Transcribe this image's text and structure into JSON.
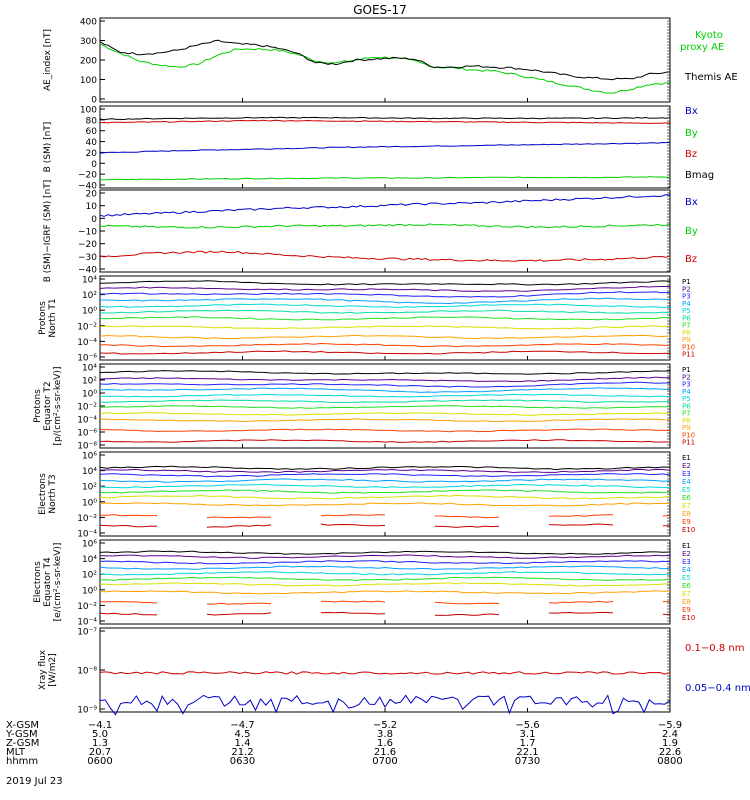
{
  "title": "GOES-17",
  "date": "2019 Jul 23",
  "colors": {
    "black": "#000000",
    "green": "#00d000",
    "blue": "#0000c8",
    "red": "#d00000",
    "p_colors": [
      "#000000",
      "#5a0090",
      "#2020ff",
      "#00a0ff",
      "#00d8d8",
      "#00e0a0",
      "#20e020",
      "#d8e000",
      "#ffa000",
      "#ff4000",
      "#c80000"
    ],
    "e_colors": [
      "#000000",
      "#5a0090",
      "#2020ff",
      "#00a0ff",
      "#00d8d8",
      "#20e020",
      "#d8e000",
      "#ffa000",
      "#ff4000",
      "#c80000"
    ]
  },
  "chart_data": [
    {
      "id": "ae",
      "type": "line",
      "ylabel": "AE_index [nT]",
      "yticks": [
        "400",
        "300",
        "200",
        "100",
        "0"
      ],
      "ylim": [
        0,
        420
      ],
      "series": [
        {
          "name": "Kyoto proxy AE",
          "color": "green",
          "values": [
            290,
            245,
            205,
            185,
            175,
            190,
            235,
            265,
            265,
            260,
            240,
            205,
            195,
            210,
            225,
            220,
            205,
            175,
            170,
            160,
            155,
            140,
            120,
            100,
            80,
            60,
            45,
            65,
            90,
            95
          ]
        },
        {
          "name": "Themis AE",
          "color": "black",
          "values": [
            300,
            250,
            240,
            245,
            260,
            285,
            305,
            290,
            285,
            270,
            245,
            195,
            190,
            210,
            215,
            220,
            215,
            175,
            175,
            180,
            175,
            170,
            160,
            145,
            130,
            120,
            115,
            115,
            140,
            150
          ]
        }
      ],
      "legend": [
        "Kyoto",
        "proxy AE",
        "Themis AE"
      ]
    },
    {
      "id": "bsm",
      "type": "line",
      "ylabel": "B (SM) [nT]",
      "yticks": [
        "100",
        "80",
        "60",
        "40",
        "20",
        "0",
        "−20",
        "−40"
      ],
      "ylim": [
        -45,
        102
      ],
      "series": [
        {
          "name": "Bx",
          "color": "blue",
          "values": [
            18,
            22,
            25,
            28,
            30,
            32,
            34,
            36
          ]
        },
        {
          "name": "By",
          "color": "green",
          "values": [
            -30,
            -29,
            -28,
            -27,
            -27,
            -26,
            -26,
            -25
          ]
        },
        {
          "name": "Bz",
          "color": "red",
          "values": [
            72,
            74,
            76,
            75,
            74,
            73,
            72,
            71
          ]
        },
        {
          "name": "Bmag",
          "color": "black",
          "values": [
            78,
            80,
            81,
            81,
            80,
            80,
            80,
            81
          ]
        }
      ],
      "legend": [
        "Bx",
        "By",
        "Bz",
        "Bmag"
      ]
    },
    {
      "id": "bigrf",
      "type": "line",
      "ylabel": "B (SM)−IGRF (SM) [nT]",
      "yticks": [
        "20",
        "10",
        "0",
        "−10",
        "−20",
        "−30",
        "−40"
      ],
      "ylim": [
        -42,
        22
      ],
      "series": [
        {
          "name": "Bx",
          "color": "blue",
          "values": [
            2,
            4,
            6,
            8,
            9,
            11,
            12,
            14,
            16,
            18
          ]
        },
        {
          "name": "By",
          "color": "green",
          "values": [
            -6,
            -7,
            -7,
            -6,
            -6,
            -5,
            -6,
            -7,
            -6,
            -5
          ]
        },
        {
          "name": "Bz",
          "color": "red",
          "values": [
            -30,
            -27,
            -26,
            -29,
            -31,
            -32,
            -33,
            -33,
            -32,
            -30
          ]
        }
      ],
      "legend": [
        "Bx",
        "By",
        "Bz"
      ]
    },
    {
      "id": "pnorth",
      "type": "line",
      "log": true,
      "ylabel": [
        "Protons",
        "North T1"
      ],
      "yticks": [
        "10⁴",
        "10²",
        "10⁰",
        "10⁻²",
        "10⁻⁴",
        "10⁻⁶"
      ],
      "ylim": [
        -7,
        4.3
      ],
      "levels": [
        3.3,
        2.5,
        1.8,
        1.0,
        0.3,
        -0.5,
        -1.4,
        -2.6,
        -3.9,
        -5.0,
        -6.0
      ],
      "legend": [
        "P1",
        "P2",
        "P3",
        "P4",
        "P5",
        "P6",
        "P7",
        "P8",
        "P9",
        "P10",
        "P11"
      ]
    },
    {
      "id": "peq",
      "type": "line",
      "log": true,
      "ylabel": [
        "Protons",
        "Equator T2",
        "[p/(cm²-s-sr-keV)]"
      ],
      "yticks": [
        "10⁴",
        "10²",
        "10⁰",
        "10⁻²",
        "10⁻⁴",
        "10⁻⁶",
        "10⁻⁸"
      ],
      "ylim": [
        -8.3,
        5
      ],
      "levels": [
        3.6,
        2.5,
        1.7,
        0.9,
        0.0,
        -0.9,
        -1.8,
        -2.9,
        -3.9,
        -5.5,
        -7.2
      ],
      "legend": [
        "P1",
        "P2",
        "P3",
        "P4",
        "P5",
        "P6",
        "P7",
        "P8",
        "P9",
        "P10",
        "P11"
      ]
    },
    {
      "id": "enorth",
      "type": "line",
      "log": true,
      "ylabel": [
        "Electrons",
        "North T3"
      ],
      "yticks": [
        "10⁶",
        "10⁴",
        "10²",
        "10⁰",
        "10⁻²",
        "10⁻⁴"
      ],
      "ylim": [
        -4.3,
        6.3
      ],
      "levels": [
        4.3,
        3.9,
        3.4,
        2.7,
        2.0,
        1.3,
        0.6,
        -0.3,
        -1.8,
        -3.0
      ],
      "legend": [
        "E1",
        "E2",
        "E3",
        "E4",
        "E5",
        "E6",
        "E7",
        "E8",
        "E9",
        "E10"
      ]
    },
    {
      "id": "eeq",
      "type": "line",
      "log": true,
      "ylabel": [
        "Electrons",
        "Equator T4",
        "[e/(cm²-s-sr-keV)]"
      ],
      "yticks": [
        "10⁶",
        "10⁴",
        "10²",
        "10⁰",
        "10⁻²",
        "10⁻⁴"
      ],
      "ylim": [
        -4.3,
        6.3
      ],
      "levels": [
        4.7,
        4.2,
        3.5,
        2.8,
        2.1,
        1.4,
        0.7,
        -0.3,
        -1.6,
        -3.0
      ],
      "legend": [
        "E1",
        "E2",
        "E3",
        "E4",
        "E5",
        "E6",
        "E7",
        "E8",
        "E9",
        "E10"
      ]
    },
    {
      "id": "xray",
      "type": "line",
      "log": true,
      "ylabel": [
        "Xray flux",
        "[W/m2]"
      ],
      "yticks": [
        "10⁻⁷",
        "10⁻⁸",
        "10⁻⁹"
      ],
      "ylim": [
        -9.15,
        -7
      ],
      "series": [
        {
          "name": "0.1−0.8 nm",
          "color": "red",
          "level": -8.15
        },
        {
          "name": "0.05−0.4 nm",
          "color": "blue",
          "level": -8.85
        }
      ],
      "legend": [
        "0.1−0.8 nm",
        "0.05−0.4 nm"
      ]
    }
  ],
  "x_axis": {
    "row_labels": [
      "X-GSM",
      "Y-GSM",
      "Z-GSM",
      "MLT",
      "hhmm"
    ],
    "columns": [
      {
        "x_gsm": "−4.1",
        "y_gsm": "5.0",
        "z_gsm": "1.3",
        "mlt": "20.7",
        "hhmm": "0600"
      },
      {
        "x_gsm": "−4.7",
        "y_gsm": "4.5",
        "z_gsm": "1.4",
        "mlt": "21.2",
        "hhmm": "0630"
      },
      {
        "x_gsm": "−5.2",
        "y_gsm": "3.8",
        "z_gsm": "1.6",
        "mlt": "21.6",
        "hhmm": "0700"
      },
      {
        "x_gsm": "−5.6",
        "y_gsm": "3.1",
        "z_gsm": "1.7",
        "mlt": "22.1",
        "hhmm": "0730"
      },
      {
        "x_gsm": "−5.9",
        "y_gsm": "2.4",
        "z_gsm": "1.9",
        "mlt": "22.6",
        "hhmm": "0800"
      }
    ]
  }
}
